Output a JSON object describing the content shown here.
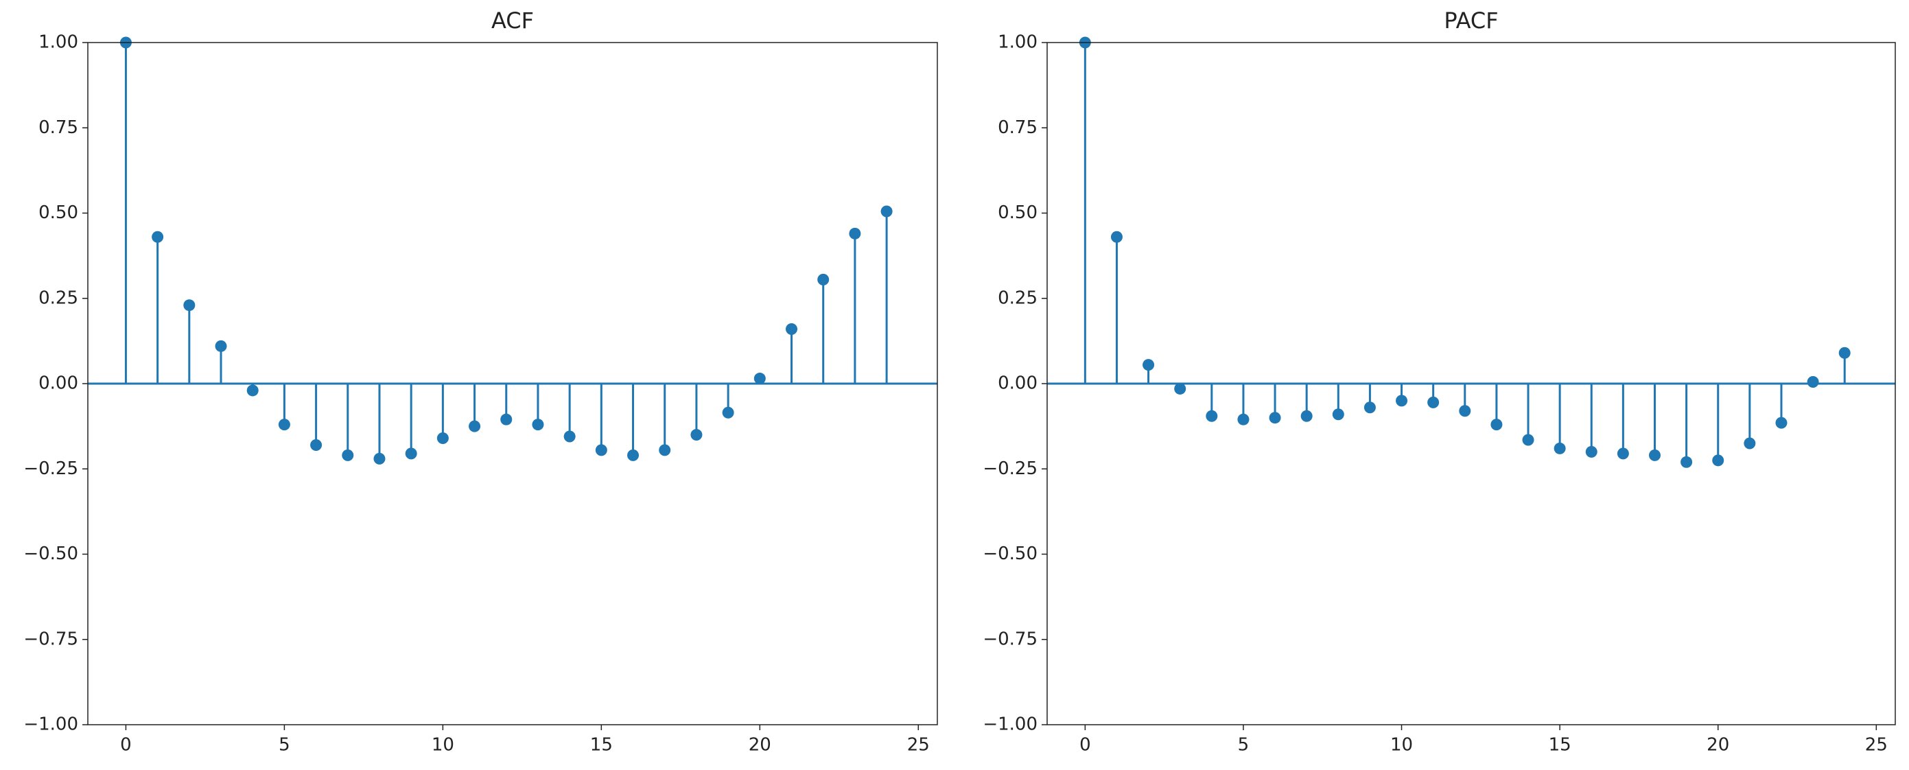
{
  "chart_data": [
    {
      "type": "stem",
      "title": "ACF",
      "color": "#1f77b4",
      "x": [
        0,
        1,
        2,
        3,
        4,
        5,
        6,
        7,
        8,
        9,
        10,
        11,
        12,
        13,
        14,
        15,
        16,
        17,
        18,
        19,
        20,
        21,
        22,
        23,
        24
      ],
      "values": [
        1.0,
        0.43,
        0.23,
        0.11,
        -0.02,
        -0.12,
        -0.18,
        -0.21,
        -0.22,
        -0.205,
        -0.16,
        -0.125,
        -0.105,
        -0.12,
        -0.155,
        -0.195,
        -0.21,
        -0.195,
        -0.15,
        -0.085,
        0.015,
        0.16,
        0.305,
        0.44,
        0.505
      ],
      "xlim": [
        -1.2,
        25.6
      ],
      "ylim": [
        -1,
        1
      ],
      "xticks": [
        0,
        5,
        10,
        15,
        20,
        25
      ],
      "yticks": [
        {
          "value": -1,
          "label": "−1.00"
        },
        {
          "value": -0.75,
          "label": "−0.75"
        },
        {
          "value": -0.5,
          "label": "−0.50"
        },
        {
          "value": -0.25,
          "label": "−0.25"
        },
        {
          "value": 0,
          "label": "0.00"
        },
        {
          "value": 0.25,
          "label": "0.25"
        },
        {
          "value": 0.5,
          "label": "0.50"
        },
        {
          "value": 0.75,
          "label": "0.75"
        },
        {
          "value": 1,
          "label": "1.00"
        }
      ]
    },
    {
      "type": "stem",
      "title": "PACF",
      "color": "#1f77b4",
      "x": [
        0,
        1,
        2,
        3,
        4,
        5,
        6,
        7,
        8,
        9,
        10,
        11,
        12,
        13,
        14,
        15,
        16,
        17,
        18,
        19,
        20,
        21,
        22,
        23,
        24
      ],
      "values": [
        1.0,
        0.43,
        0.055,
        -0.015,
        -0.095,
        -0.105,
        -0.1,
        -0.095,
        -0.09,
        -0.07,
        -0.05,
        -0.055,
        -0.08,
        -0.12,
        -0.165,
        -0.19,
        -0.2,
        -0.205,
        -0.21,
        -0.23,
        -0.225,
        -0.175,
        -0.115,
        0.005,
        0.09
      ],
      "xlim": [
        -1.2,
        25.6
      ],
      "ylim": [
        -1,
        1
      ],
      "xticks": [
        0,
        5,
        10,
        15,
        20,
        25
      ],
      "yticks": [
        {
          "value": -1,
          "label": "−1.00"
        },
        {
          "value": -0.75,
          "label": "−0.75"
        },
        {
          "value": -0.5,
          "label": "−0.50"
        },
        {
          "value": -0.25,
          "label": "−0.25"
        },
        {
          "value": 0,
          "label": "0.00"
        },
        {
          "value": 0.25,
          "label": "0.25"
        },
        {
          "value": 0.5,
          "label": "0.50"
        },
        {
          "value": 0.75,
          "label": "0.75"
        },
        {
          "value": 1,
          "label": "1.00"
        }
      ]
    }
  ]
}
